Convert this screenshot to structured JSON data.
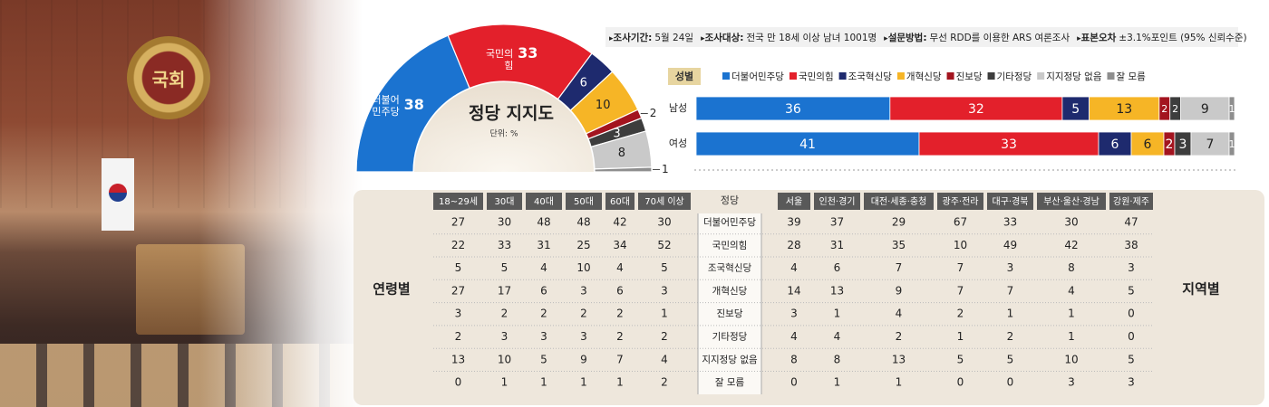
{
  "chart_data": [
    {
      "type": "pie",
      "donut": true,
      "half": true,
      "title": "정당 지지도",
      "subtitle": "단위: %",
      "categories": [
        "더불어 민주당",
        "국민의힘",
        null,
        null,
        null,
        null,
        null,
        null
      ],
      "values": [
        38,
        33,
        6,
        10,
        2,
        3,
        8,
        1
      ],
      "colors": [
        "#1b73d0",
        "#e3202b",
        "#1e2a6e",
        "#f6b526",
        "#a3141f",
        "#3d3d3d",
        "#c9c9c9",
        "#8e8e8e"
      ]
    },
    {
      "type": "bar",
      "orientation": "horizontal",
      "stacked": true,
      "title": "성별",
      "categories": [
        "남성",
        "여성"
      ],
      "series": [
        {
          "name": "더불어민주당",
          "color": "#1b73d0",
          "values": [
            36,
            41
          ]
        },
        {
          "name": "국민의힘",
          "color": "#e3202b",
          "values": [
            32,
            33
          ]
        },
        {
          "name": "조국혁신당",
          "color": "#1e2a6e",
          "values": [
            5,
            6
          ]
        },
        {
          "name": "개혁신당",
          "color": "#f6b526",
          "values": [
            13,
            6
          ]
        },
        {
          "name": "진보당",
          "color": "#a3141f",
          "values": [
            2,
            2
          ]
        },
        {
          "name": "기타정당",
          "color": "#3d3d3d",
          "values": [
            2,
            3
          ]
        },
        {
          "name": "지지정당 없음",
          "color": "#c9c9c9",
          "values": [
            9,
            7
          ]
        },
        {
          "name": "잘 모름",
          "color": "#8e8e8e",
          "values": [
            1,
            1
          ]
        }
      ]
    }
  ],
  "survey_info": [
    {
      "label": "조사기간:",
      "text": "5월 24일"
    },
    {
      "label": "조사대상:",
      "text": "전국 만 18세 이상 남녀 1001명"
    },
    {
      "label": "설문방법:",
      "text": "무선 RDD를 이용한 ARS 여론조사"
    },
    {
      "label": "표본오차",
      "text": "±3.1%포인트 (95% 신뢰수준)"
    }
  ],
  "photo": {
    "emblem_text": "국회"
  },
  "table": {
    "age_label": "연령별",
    "region_label": "지역별",
    "party_header": "정당",
    "age_groups": [
      "18~29세",
      "30대",
      "40대",
      "50대",
      "60대",
      "70세 이상"
    ],
    "regions": [
      "서울",
      "인천·경기",
      "대전·세종·충청",
      "광주·전라",
      "대구·경북",
      "부산·울산·경남",
      "강원·제주"
    ],
    "rows": [
      {
        "party": "더불어민주당",
        "age": [
          27,
          30,
          48,
          48,
          42,
          30
        ],
        "region": [
          39,
          37,
          29,
          67,
          33,
          30,
          47
        ]
      },
      {
        "party": "국민의힘",
        "age": [
          22,
          33,
          31,
          25,
          34,
          52
        ],
        "region": [
          28,
          31,
          35,
          10,
          49,
          42,
          38
        ]
      },
      {
        "party": "조국혁신당",
        "age": [
          5,
          5,
          4,
          10,
          4,
          5
        ],
        "region": [
          4,
          6,
          7,
          7,
          3,
          8,
          3
        ]
      },
      {
        "party": "개혁신당",
        "age": [
          27,
          17,
          6,
          3,
          6,
          3
        ],
        "region": [
          14,
          13,
          9,
          7,
          7,
          4,
          5
        ]
      },
      {
        "party": "진보당",
        "age": [
          3,
          2,
          2,
          2,
          2,
          1
        ],
        "region": [
          3,
          1,
          4,
          2,
          1,
          1,
          0
        ]
      },
      {
        "party": "기타정당",
        "age": [
          2,
          3,
          3,
          3,
          2,
          2
        ],
        "region": [
          4,
          4,
          2,
          1,
          2,
          1,
          0
        ]
      },
      {
        "party": "지지정당 없음",
        "age": [
          13,
          10,
          5,
          9,
          7,
          4
        ],
        "region": [
          8,
          8,
          13,
          5,
          5,
          10,
          5
        ]
      },
      {
        "party": "잘 모름",
        "age": [
          0,
          1,
          1,
          1,
          1,
          2
        ],
        "region": [
          0,
          1,
          1,
          0,
          0,
          3,
          3
        ]
      }
    ]
  }
}
